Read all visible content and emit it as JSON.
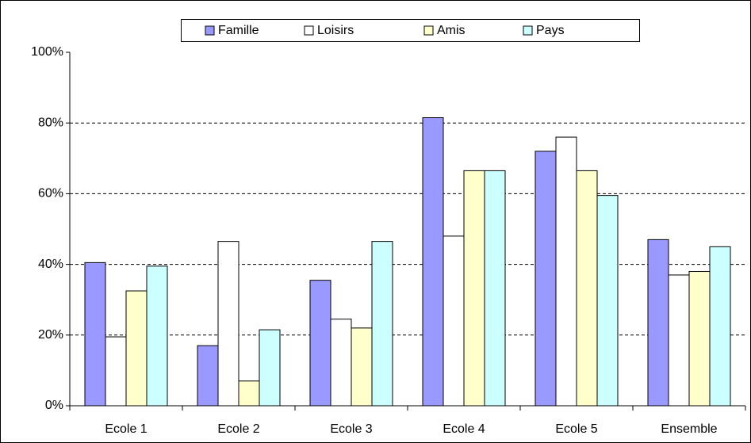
{
  "chart_data": {
    "type": "bar",
    "categories": [
      "Ecole 1",
      "Ecole 2",
      "Ecole 3",
      "Ecole 4",
      "Ecole 5",
      "Ensemble"
    ],
    "series": [
      {
        "name": "Famille",
        "color": "#9999ff",
        "values": [
          40.5,
          17,
          35.5,
          81.5,
          72,
          47
        ]
      },
      {
        "name": "Loisirs",
        "color": "#ffffff",
        "values": [
          19.5,
          46.5,
          24.5,
          48,
          76,
          37
        ]
      },
      {
        "name": "Amis",
        "color": "#ffffcc",
        "values": [
          32.5,
          7,
          22,
          66.5,
          66.5,
          38
        ]
      },
      {
        "name": "Pays",
        "color": "#ccffff",
        "values": [
          39.5,
          21.5,
          46.5,
          66.5,
          59.5,
          45
        ]
      }
    ],
    "ylim": [
      0,
      100
    ],
    "yticks": [
      {
        "value": 0,
        "label": "0%"
      },
      {
        "value": 20,
        "label": "20%"
      },
      {
        "value": 40,
        "label": "40%"
      },
      {
        "value": 60,
        "label": "60%"
      },
      {
        "value": 80,
        "label": "80%"
      },
      {
        "value": 100,
        "label": "100%"
      }
    ],
    "grid": true,
    "legend": "top"
  }
}
